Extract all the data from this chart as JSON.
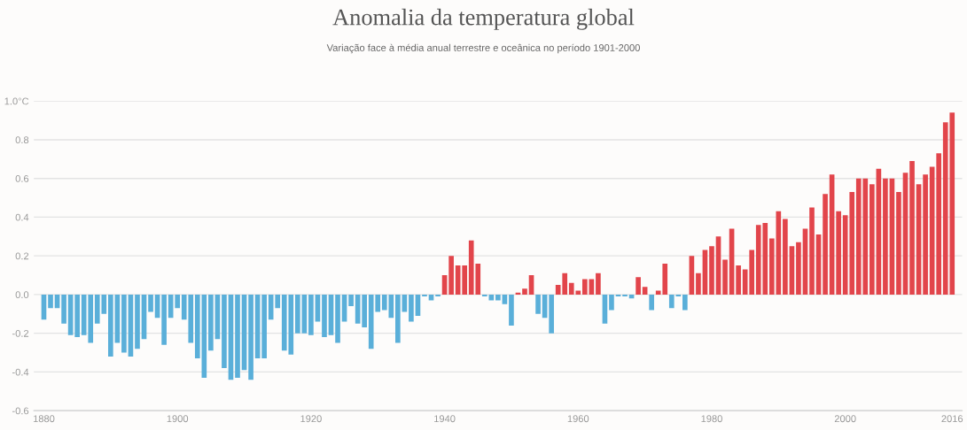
{
  "chart_data": {
    "type": "bar",
    "title": "Anomalia da temperatura global",
    "subtitle": "Variação face à média anual terrestre e oceânica no período 1901-2000",
    "x": [
      1880,
      1881,
      1882,
      1883,
      1884,
      1885,
      1886,
      1887,
      1888,
      1889,
      1890,
      1891,
      1892,
      1893,
      1894,
      1895,
      1896,
      1897,
      1898,
      1899,
      1900,
      1901,
      1902,
      1903,
      1904,
      1905,
      1906,
      1907,
      1908,
      1909,
      1910,
      1911,
      1912,
      1913,
      1914,
      1915,
      1916,
      1917,
      1918,
      1919,
      1920,
      1921,
      1922,
      1923,
      1924,
      1925,
      1926,
      1927,
      1928,
      1929,
      1930,
      1931,
      1932,
      1933,
      1934,
      1935,
      1936,
      1937,
      1938,
      1939,
      1940,
      1941,
      1942,
      1943,
      1944,
      1945,
      1946,
      1947,
      1948,
      1949,
      1950,
      1951,
      1952,
      1953,
      1954,
      1955,
      1956,
      1957,
      1958,
      1959,
      1960,
      1961,
      1962,
      1963,
      1964,
      1965,
      1966,
      1967,
      1968,
      1969,
      1970,
      1971,
      1972,
      1973,
      1974,
      1975,
      1976,
      1977,
      1978,
      1979,
      1980,
      1981,
      1982,
      1983,
      1984,
      1985,
      1986,
      1987,
      1988,
      1989,
      1990,
      1991,
      1992,
      1993,
      1994,
      1995,
      1996,
      1997,
      1998,
      1999,
      2000,
      2001,
      2002,
      2003,
      2004,
      2005,
      2006,
      2007,
      2008,
      2009,
      2010,
      2011,
      2012,
      2013,
      2014,
      2015,
      2016
    ],
    "values": [
      -0.13,
      -0.07,
      -0.07,
      -0.15,
      -0.21,
      -0.22,
      -0.21,
      -0.25,
      -0.15,
      -0.1,
      -0.32,
      -0.25,
      -0.3,
      -0.32,
      -0.28,
      -0.23,
      -0.09,
      -0.12,
      -0.26,
      -0.12,
      -0.07,
      -0.13,
      -0.25,
      -0.33,
      -0.43,
      -0.29,
      -0.23,
      -0.38,
      -0.44,
      -0.43,
      -0.39,
      -0.44,
      -0.33,
      -0.33,
      -0.13,
      -0.07,
      -0.29,
      -0.31,
      -0.2,
      -0.2,
      -0.21,
      -0.14,
      -0.22,
      -0.21,
      -0.25,
      -0.14,
      -0.06,
      -0.15,
      -0.17,
      -0.28,
      -0.09,
      -0.08,
      -0.12,
      -0.25,
      -0.09,
      -0.14,
      -0.11,
      -0.01,
      -0.03,
      -0.01,
      0.1,
      0.2,
      0.15,
      0.15,
      0.28,
      0.16,
      -0.01,
      -0.03,
      -0.03,
      -0.05,
      -0.16,
      0.01,
      0.03,
      0.1,
      -0.1,
      -0.12,
      -0.2,
      0.05,
      0.11,
      0.06,
      0.02,
      0.08,
      0.08,
      0.11,
      -0.15,
      -0.08,
      -0.01,
      -0.01,
      -0.02,
      0.09,
      0.04,
      -0.08,
      0.02,
      0.16,
      -0.07,
      -0.01,
      -0.08,
      0.2,
      0.11,
      0.23,
      0.25,
      0.3,
      0.18,
      0.34,
      0.15,
      0.13,
      0.23,
      0.36,
      0.37,
      0.29,
      0.43,
      0.39,
      0.25,
      0.27,
      0.34,
      0.45,
      0.31,
      0.52,
      0.62,
      0.43,
      0.41,
      0.53,
      0.6,
      0.6,
      0.57,
      0.65,
      0.6,
      0.6,
      0.53,
      0.63,
      0.69,
      0.57,
      0.62,
      0.66,
      0.73,
      0.89,
      0.94
    ],
    "colors": [
      "#5aafd9",
      "#5aafd9",
      "#5aafd9",
      "#5aafd9",
      "#5aafd9",
      "#5aafd9",
      "#5aafd9",
      "#5aafd9",
      "#5aafd9",
      "#5aafd9",
      "#5aafd9",
      "#5aafd9",
      "#5aafd9",
      "#5aafd9",
      "#5aafd9",
      "#5aafd9",
      "#5aafd9",
      "#5aafd9",
      "#5aafd9",
      "#5aafd9",
      "#5aafd9",
      "#5aafd9",
      "#5aafd9",
      "#5aafd9",
      "#5aafd9",
      "#5aafd9",
      "#5aafd9",
      "#5aafd9",
      "#5aafd9",
      "#5aafd9",
      "#5aafd9",
      "#5aafd9",
      "#5aafd9",
      "#5aafd9",
      "#5aafd9",
      "#5aafd9",
      "#5aafd9",
      "#5aafd9",
      "#5aafd9",
      "#5aafd9",
      "#5aafd9",
      "#5aafd9",
      "#5aafd9",
      "#5aafd9",
      "#5aafd9",
      "#5aafd9",
      "#5aafd9",
      "#5aafd9",
      "#5aafd9",
      "#5aafd9",
      "#5aafd9",
      "#5aafd9",
      "#5aafd9",
      "#5aafd9",
      "#5aafd9",
      "#5aafd9",
      "#5aafd9",
      "#5aafd9",
      "#5aafd9",
      "#5aafd9",
      "#e2454b",
      "#e2454b",
      "#e2454b",
      "#e2454b",
      "#e2454b",
      "#e2454b",
      "#5aafd9",
      "#5aafd9",
      "#5aafd9",
      "#5aafd9",
      "#5aafd9",
      "#e2454b",
      "#e2454b",
      "#e2454b",
      "#5aafd9",
      "#5aafd9",
      "#5aafd9",
      "#e2454b",
      "#e2454b",
      "#e2454b",
      "#e2454b",
      "#e2454b",
      "#e2454b",
      "#e2454b",
      "#5aafd9",
      "#5aafd9",
      "#5aafd9",
      "#5aafd9",
      "#5aafd9",
      "#e2454b",
      "#e2454b",
      "#5aafd9",
      "#e2454b",
      "#e2454b",
      "#5aafd9",
      "#5aafd9",
      "#5aafd9",
      "#e2454b",
      "#e2454b",
      "#e2454b",
      "#e2454b",
      "#e2454b",
      "#e2454b",
      "#e2454b",
      "#e2454b",
      "#e2454b",
      "#e2454b",
      "#e2454b",
      "#e2454b",
      "#e2454b",
      "#e2454b",
      "#e2454b",
      "#e2454b",
      "#e2454b",
      "#e2454b",
      "#e2454b",
      "#e2454b",
      "#e2454b",
      "#e2454b",
      "#e2454b",
      "#e2454b",
      "#e2454b",
      "#e2454b",
      "#e2454b",
      "#e2454b",
      "#e2454b",
      "#e2454b",
      "#e2454b",
      "#e2454b",
      "#e2454b",
      "#e2454b",
      "#e2454b",
      "#e2454b",
      "#e2454b",
      "#e2454b",
      "#e2454b",
      "#e2454b"
    ],
    "xlim": [
      1878.5,
      2017.5
    ],
    "xticks": [
      1880,
      1900,
      1920,
      1940,
      1960,
      1980,
      2000,
      2016
    ],
    "ylim": [
      -0.6,
      1.0
    ],
    "yticks": [
      {
        "value": -0.6,
        "label": "-0.6"
      },
      {
        "value": -0.4,
        "label": "-0.4"
      },
      {
        "value": -0.2,
        "label": "-0.2"
      },
      {
        "value": 0.0,
        "label": "0.0"
      },
      {
        "value": 0.2,
        "label": "0.2"
      },
      {
        "value": 0.4,
        "label": "0.4"
      },
      {
        "value": 0.6,
        "label": "0.6"
      },
      {
        "value": 0.8,
        "label": "0.8"
      },
      {
        "value": 1.0,
        "label": "1.0°C"
      }
    ],
    "grid": "y",
    "legend": false
  }
}
